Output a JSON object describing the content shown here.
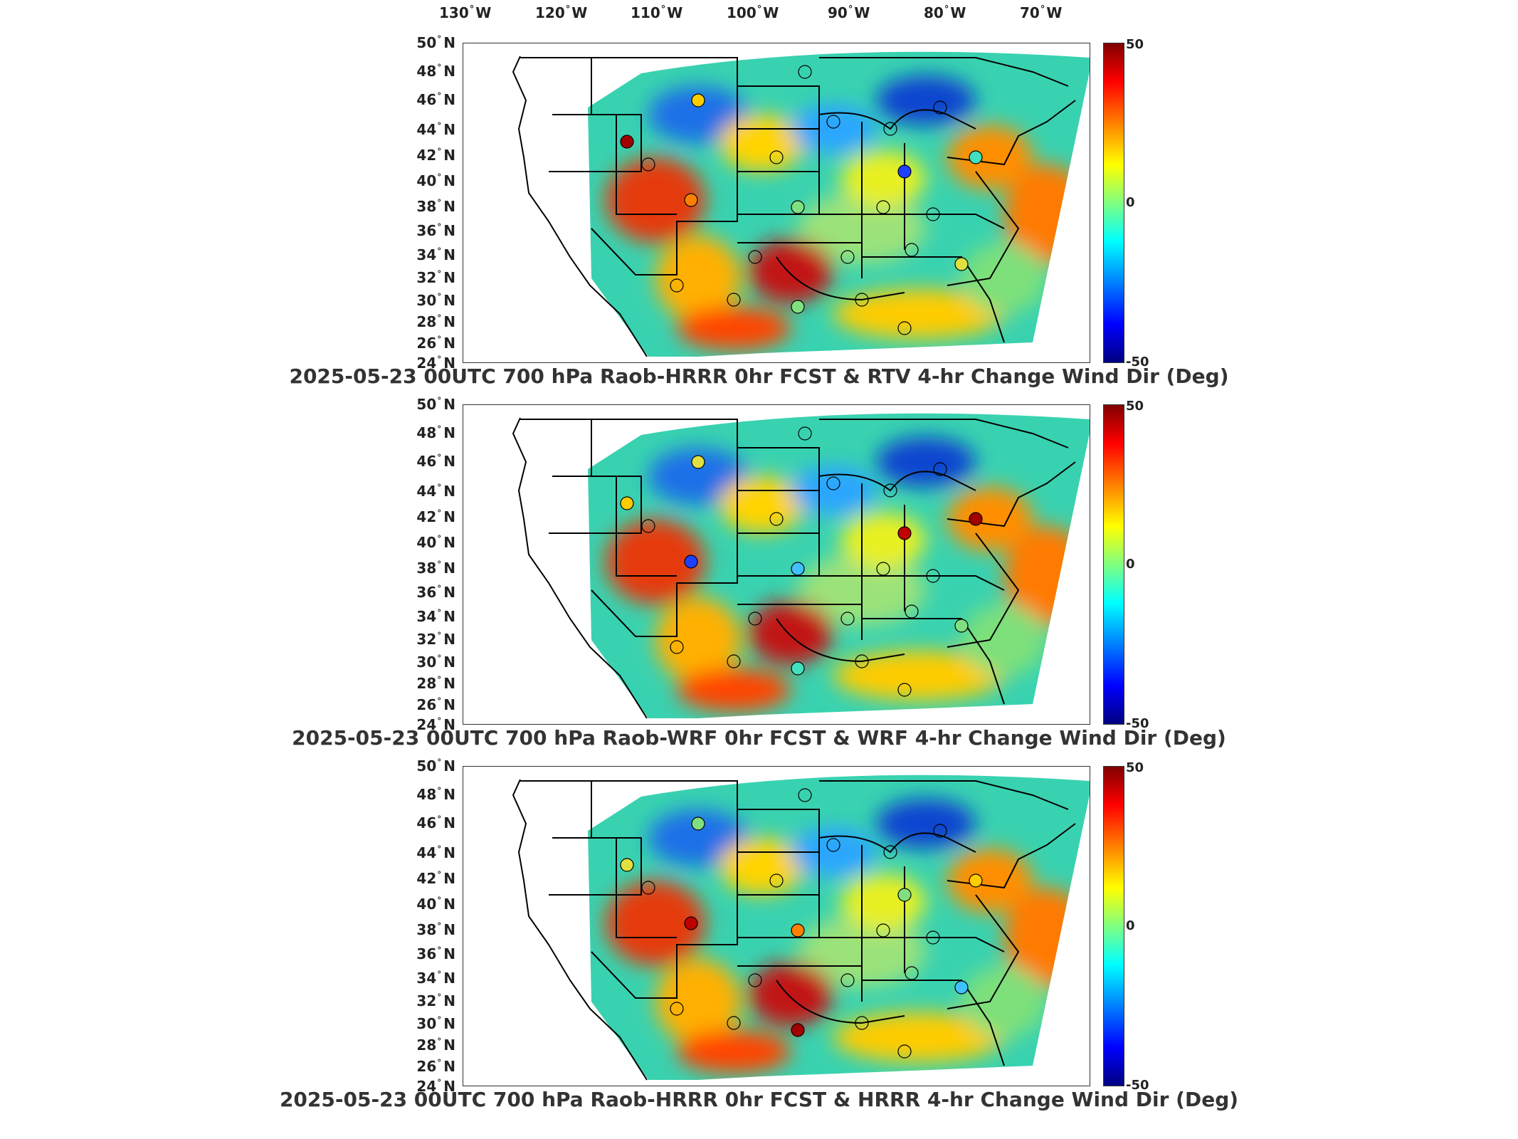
{
  "top_longitude_labels": [
    {
      "v": "130",
      "h": "W"
    },
    {
      "v": "120",
      "h": "W"
    },
    {
      "v": "110",
      "h": "W"
    },
    {
      "v": "100",
      "h": "W"
    },
    {
      "v": "90",
      "h": "W"
    },
    {
      "v": "80",
      "h": "W"
    },
    {
      "v": "70",
      "h": "W"
    }
  ],
  "latitude_labels": [
    {
      "v": "50",
      "h": "N"
    },
    {
      "v": "48",
      "h": "N"
    },
    {
      "v": "46",
      "h": "N"
    },
    {
      "v": "44",
      "h": "N"
    },
    {
      "v": "42",
      "h": "N"
    },
    {
      "v": "40",
      "h": "N"
    },
    {
      "v": "38",
      "h": "N"
    },
    {
      "v": "36",
      "h": "N"
    },
    {
      "v": "34",
      "h": "N"
    },
    {
      "v": "32",
      "h": "N"
    },
    {
      "v": "30",
      "h": "N"
    },
    {
      "v": "28",
      "h": "N"
    },
    {
      "v": "26",
      "h": "N"
    },
    {
      "v": "24",
      "h": "N"
    }
  ],
  "colorbar": {
    "max_label": "50",
    "mid_label": "0",
    "min_label": "-50",
    "colors": [
      "#800000",
      "#ff0000",
      "#ff8000",
      "#ffff00",
      "#80ff80",
      "#00ffff",
      "#0080ff",
      "#0000ff",
      "#000080"
    ]
  },
  "panels": [
    {
      "title": "2025-05-23 00UTC 700 hPa Raob-HRRR 0hr FCST & RTV 4-hr Change Wind Dir (Deg)"
    },
    {
      "title": "2025-05-23 00UTC 700 hPa Raob-WRF 0hr FCST & WRF 4-hr Change Wind Dir (Deg)"
    },
    {
      "title": "2025-05-23 00UTC 700 hPa Raob-HRRR 0hr FCST & HRRR 4-hr Change Wind Dir (Deg)"
    }
  ]
}
